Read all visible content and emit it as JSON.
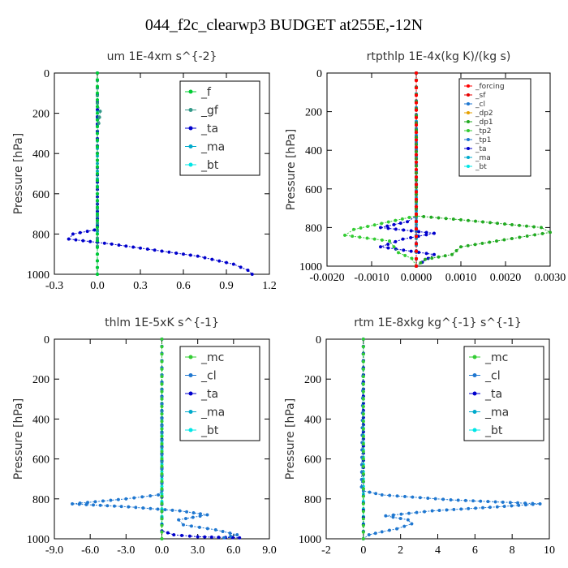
{
  "title": "044_f2c_clearwp3  BUDGET at255E,-12N",
  "colors": {
    "f": "#00cc33",
    "gf": "#339988",
    "ta": "#0000cc",
    "ma": "#00aacc",
    "bt": "#00e6e6",
    "forcing": "#ff0000",
    "sf": "#e60000",
    "cl": "#1f77d0",
    "dp2": "#e6a000",
    "dp1": "#22aa22",
    "tp2": "#33cc33",
    "tp1": "#1f77d0",
    "mc": "#33cc33"
  },
  "chart_data": [
    {
      "type": "line",
      "title": "um   1E-4xm s^{-2}",
      "ylabel": "Pressure [hPa]",
      "xlim": [
        -0.3,
        1.2
      ],
      "ylim": [
        0,
        1000
      ],
      "xticks": [
        "-0.3",
        "0.0",
        "0.3",
        "0.6",
        "0.9",
        "1.2"
      ],
      "xtick_values": [
        -0.3,
        0.0,
        0.3,
        0.6,
        0.9,
        1.2
      ],
      "yticks": [
        "0",
        "200",
        "400",
        "600",
        "800",
        "1000"
      ],
      "legend_position": "top-right",
      "series": [
        {
          "name": "_f",
          "color_key": "f",
          "x": [
            0.0,
            0.0,
            0.0,
            0.0,
            0.0,
            0.0,
            0.0,
            0.0,
            0.0,
            0.0,
            0.0
          ],
          "y": [
            0,
            100,
            200,
            300,
            400,
            500,
            600,
            700,
            800,
            900,
            1000
          ]
        },
        {
          "name": "_gf",
          "color_key": "gf",
          "x": [
            0.0,
            0.0,
            0.02,
            0.01,
            0.0,
            0.0,
            0.0,
            0.0,
            0.0,
            0.0
          ],
          "y": [
            0,
            150,
            190,
            250,
            300,
            400,
            600,
            780,
            900,
            1000
          ]
        },
        {
          "name": "_ta",
          "color_key": "ta",
          "x": [
            0.0,
            0.0,
            -0.02,
            -0.17,
            -0.2,
            0.1,
            0.4,
            0.7,
            0.95,
            1.05,
            1.08
          ],
          "y": [
            0,
            760,
            780,
            800,
            825,
            850,
            880,
            910,
            950,
            980,
            1000
          ]
        },
        {
          "name": "_ma",
          "color_key": "ma",
          "x": [
            0.0,
            0.0,
            0.0,
            0.0,
            0.0,
            0.0,
            0.0,
            0.0
          ],
          "y": [
            0,
            150,
            300,
            450,
            600,
            750,
            900,
            1000
          ]
        },
        {
          "name": "_bt",
          "color_key": "bt",
          "x": [
            0.0,
            0.0,
            0.0,
            0.0,
            0.0,
            0.0,
            0.0
          ],
          "y": [
            0,
            200,
            400,
            600,
            800,
            900,
            1000
          ]
        }
      ]
    },
    {
      "type": "line",
      "title": "rtpthlp   1E-4x(kg K)/(kg s)",
      "ylabel": "Pressure [hPa]",
      "xlim": [
        -0.002,
        0.003
      ],
      "ylim": [
        0,
        1000
      ],
      "xticks": [
        "-0.0020",
        "-0.0010",
        "0.0000",
        "0.0010",
        "0.0020",
        "0.0030"
      ],
      "xtick_values": [
        -0.002,
        -0.001,
        0.0,
        0.001,
        0.002,
        0.003
      ],
      "yticks": [
        "0",
        "200",
        "400",
        "600",
        "800",
        "1000"
      ],
      "legend_position": "top-right",
      "series": [
        {
          "name": "_forcing",
          "color_key": "forcing",
          "x": [
            0,
            0
          ],
          "y": [
            0,
            1000
          ]
        },
        {
          "name": "_sf",
          "color_key": "sf",
          "x": [
            0,
            0
          ],
          "y": [
            0,
            1000
          ]
        },
        {
          "name": "_cl",
          "color_key": "cl",
          "x": [
            0,
            0
          ],
          "y": [
            0,
            1000
          ]
        },
        {
          "name": "_dp2",
          "color_key": "dp2",
          "x": [
            0,
            0
          ],
          "y": [
            0,
            1000
          ]
        },
        {
          "name": "_dp1",
          "color_key": "dp1",
          "x": [
            0.0,
            0.0,
            0.001,
            0.0028,
            0.003,
            0.0018,
            0.001,
            0.0008,
            0.0002,
            0.0
          ],
          "y": [
            0,
            740,
            760,
            800,
            825,
            870,
            900,
            940,
            965,
            1000
          ]
        },
        {
          "name": "_tp2",
          "color_key": "tp2",
          "x": [
            0.0,
            0.0,
            -0.0014,
            -0.0016,
            -0.0006,
            -0.0005,
            -0.0004,
            -0.0001,
            0.0
          ],
          "y": [
            0,
            740,
            810,
            840,
            870,
            900,
            930,
            960,
            1000
          ]
        },
        {
          "name": "_tp1",
          "color_key": "tp1",
          "x": [
            0.0,
            0.0,
            0.0,
            0.0
          ],
          "y": [
            0,
            400,
            800,
            1000
          ]
        },
        {
          "name": "_ta",
          "color_key": "ta",
          "x": [
            0.0,
            0.0,
            -0.0002,
            -0.0008,
            0.0004,
            -0.0003,
            -0.0008,
            0.0004,
            0.0
          ],
          "y": [
            0,
            740,
            770,
            800,
            830,
            860,
            900,
            940,
            1000
          ]
        },
        {
          "name": "_ma",
          "color_key": "ma",
          "x": [
            0.0,
            0.0,
            0.0,
            0.0,
            0.0
          ],
          "y": [
            0,
            250,
            500,
            750,
            1000
          ]
        },
        {
          "name": "_bt",
          "color_key": "bt",
          "x": [
            0.0,
            0.0,
            0.0,
            0.0
          ],
          "y": [
            0,
            300,
            700,
            1000
          ]
        }
      ]
    },
    {
      "type": "line",
      "title": "thlm   1E-5xK s^{-1}",
      "ylabel": "Pressure [hPa]",
      "xlim": [
        -9.0,
        9.0
      ],
      "ylim": [
        0,
        1000
      ],
      "xticks": [
        "-9.0",
        "-6.0",
        "-3.0",
        "0.0",
        "3.0",
        "6.0",
        "9.0"
      ],
      "xtick_values": [
        -9.0,
        -6.0,
        -3.0,
        0.0,
        3.0,
        6.0,
        9.0
      ],
      "yticks": [
        "0",
        "200",
        "400",
        "600",
        "800",
        "1000"
      ],
      "legend_position": "top-right",
      "series": [
        {
          "name": "_mc",
          "color_key": "mc",
          "x": [
            0.0,
            0.0,
            0.0,
            0.0,
            0.0,
            0.0,
            0.0,
            0.0
          ],
          "y": [
            0,
            150,
            300,
            450,
            600,
            750,
            900,
            1000
          ]
        },
        {
          "name": "_cl",
          "color_key": "cl",
          "x": [
            0.0,
            0.0,
            -0.3,
            -3.0,
            -7.5,
            -2.8,
            1.5,
            3.8,
            1.4,
            1.8,
            4.5,
            6.3,
            5.2
          ],
          "y": [
            0,
            760,
            780,
            800,
            825,
            840,
            860,
            880,
            905,
            930,
            955,
            980,
            995
          ]
        },
        {
          "name": "_ta",
          "color_key": "ta",
          "x": [
            0.0,
            0.0,
            0.0,
            1.0,
            3.0,
            6.5
          ],
          "y": [
            0,
            900,
            960,
            980,
            990,
            995
          ]
        },
        {
          "name": "_ma",
          "color_key": "ma",
          "x": [
            0.0,
            0.0,
            0.0,
            0.0,
            0.0
          ],
          "y": [
            0,
            250,
            500,
            750,
            1000
          ]
        },
        {
          "name": "_bt",
          "color_key": "bt",
          "x": [
            0.0,
            0.0,
            0.0,
            0.0
          ],
          "y": [
            0,
            300,
            700,
            1000
          ]
        }
      ]
    },
    {
      "type": "line",
      "title": "rtm   1E-8xkg kg^{-1} s^{-1}",
      "ylabel": "Pressure [hPa]",
      "xlim": [
        -2,
        10
      ],
      "ylim": [
        0,
        1000
      ],
      "xticks": [
        "-2",
        "0",
        "2",
        "4",
        "6",
        "8",
        "10"
      ],
      "xtick_values": [
        -2,
        0,
        2,
        4,
        6,
        8,
        10
      ],
      "yticks": [
        "0",
        "200",
        "400",
        "600",
        "800",
        "1000"
      ],
      "legend_position": "top-right",
      "series": [
        {
          "name": "_mc",
          "color_key": "mc",
          "x": [
            0.0,
            0.0,
            0.0,
            0.0,
            0.0,
            0.0,
            0.0,
            0.0
          ],
          "y": [
            0,
            150,
            300,
            450,
            600,
            750,
            900,
            1000
          ]
        },
        {
          "name": "_cl",
          "color_key": "cl",
          "x": [
            0.0,
            -0.1,
            0.0,
            1.0,
            4.7,
            9.5,
            7.2,
            3.7,
            1.2,
            2.4,
            2.6,
            1.8,
            1.0,
            0.3,
            0.0
          ],
          "y": [
            0,
            740,
            760,
            780,
            805,
            825,
            840,
            860,
            885,
            905,
            925,
            950,
            965,
            980,
            1000
          ]
        },
        {
          "name": "_ta",
          "color_key": "ta",
          "x": [
            0.0,
            0.0,
            0.0
          ],
          "y": [
            0,
            500,
            1000
          ]
        },
        {
          "name": "_ma",
          "color_key": "ma",
          "x": [
            0.0,
            0.0,
            0.0,
            0.0,
            0.0
          ],
          "y": [
            0,
            250,
            500,
            750,
            1000
          ]
        },
        {
          "name": "_bt",
          "color_key": "bt",
          "x": [
            0.0,
            0.0,
            0.0,
            0.0
          ],
          "y": [
            0,
            300,
            700,
            1000
          ]
        }
      ]
    }
  ]
}
